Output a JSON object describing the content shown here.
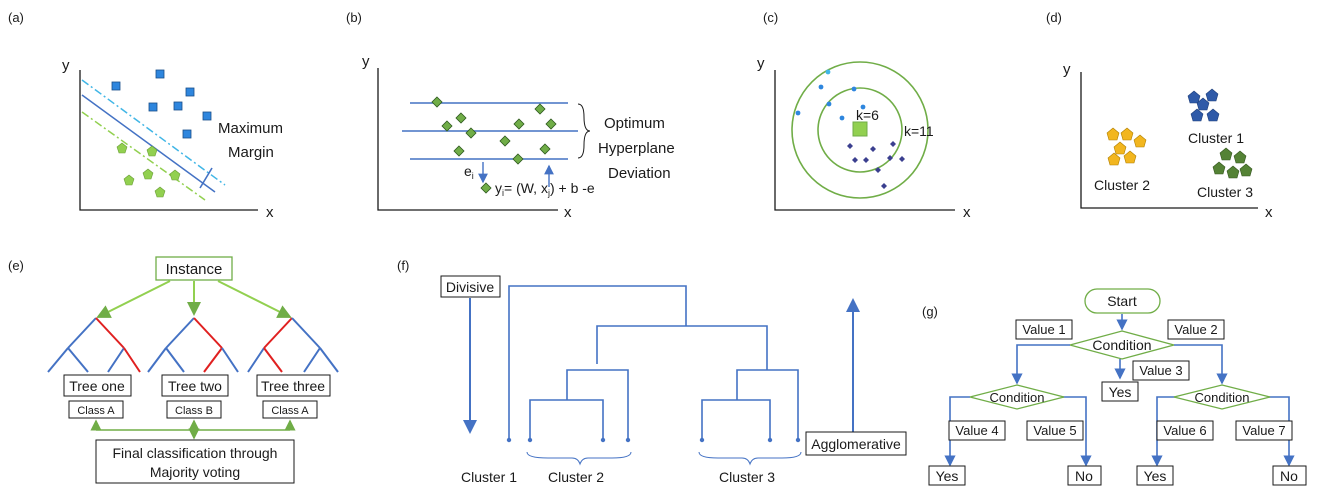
{
  "colors": {
    "axis": "#1a1a1a",
    "blue": "#4472c4",
    "navy": "#3b3f8f",
    "green": "#70ad47",
    "light_green": "#92d050",
    "red": "#e02020",
    "cyan": "#41b6e6",
    "orange": "#f2b61f",
    "dark_green": "#548235",
    "square_blue": "#2e86de"
  },
  "panels": {
    "a": {
      "label": "(a)",
      "ylabel": "y",
      "xlabel": "x",
      "annotation_line1": "Maximum",
      "annotation_line2": "Margin"
    },
    "b": {
      "label": "(b)",
      "ylabel": "y",
      "xlabel": "x",
      "annotation_line1": "Optimum",
      "annotation_line2": "Hyperplane",
      "annotation_line3": "Deviation",
      "error_label": "e",
      "error_sub": "i",
      "formula_y": "y",
      "formula_sub_i": "i",
      "formula_mid": "= (W, x",
      "formula_sub_j": "j",
      "formula_end": ") + b -e"
    },
    "c": {
      "label": "(c)",
      "ylabel": "y",
      "xlabel": "x",
      "k_inner": "k=6",
      "k_outer": "k=11"
    },
    "d": {
      "label": "(d)",
      "ylabel": "y",
      "xlabel": "x",
      "cluster1": "Cluster 1",
      "cluster2": "Cluster 2",
      "cluster3": "Cluster 3"
    },
    "e": {
      "label": "(e)",
      "instance": "Instance",
      "tree1": "Tree one",
      "tree2": "Tree two",
      "tree3": "Tree three",
      "class1": "Class A",
      "class2": "Class B",
      "class3": "Class A",
      "final_line1": "Final classification through",
      "final_line2": "Majority voting"
    },
    "f": {
      "label": "(f)",
      "divisive": "Divisive",
      "agglomerative": "Agglomerative",
      "cluster1": "Cluster 1",
      "cluster2": "Cluster 2",
      "cluster3": "Cluster 3"
    },
    "g": {
      "label": "(g)",
      "start": "Start",
      "condition_top": "Condition",
      "condition_left": "Condition",
      "condition_right": "Condition",
      "value1": "Value 1",
      "value2": "Value 2",
      "value3": "Value 3",
      "value4": "Value 4",
      "value5": "Value 5",
      "value6": "Value 6",
      "value7": "Value 7",
      "yes_mid": "Yes",
      "yes_left": "Yes",
      "no_left": "No",
      "yes_right": "Yes",
      "no_right": "No"
    }
  }
}
